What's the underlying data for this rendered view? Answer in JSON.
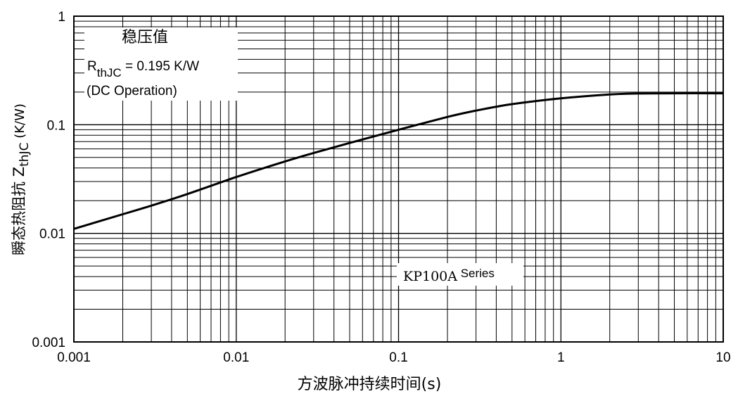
{
  "chart_data": {
    "type": "line",
    "x_scale": "log",
    "y_scale": "log",
    "xlim": [
      0.001,
      10
    ],
    "ylim": [
      0.001,
      1
    ],
    "grid": true,
    "xlabel": "方波脉冲持续时间(s)",
    "ylabel": {
      "prefix": "瞬态热阻抗 Z",
      "sub": "thJC",
      "suffix": " (K/W)"
    },
    "x_ticks": [
      {
        "value": 0.001,
        "label": "0.001"
      },
      {
        "value": 0.01,
        "label": "0.01"
      },
      {
        "value": 0.1,
        "label": "0.1"
      },
      {
        "value": 1,
        "label": "1"
      },
      {
        "value": 10,
        "label": "10"
      }
    ],
    "y_ticks": [
      {
        "value": 0.001,
        "label": "0.001"
      },
      {
        "value": 0.01,
        "label": "0.01"
      },
      {
        "value": 0.1,
        "label": "0.1"
      },
      {
        "value": 1,
        "label": "1"
      }
    ],
    "series": [
      {
        "name": "KP100A Series",
        "x": [
          0.001,
          0.002,
          0.003,
          0.005,
          0.01,
          0.02,
          0.03,
          0.05,
          0.1,
          0.2,
          0.3,
          0.5,
          1,
          2,
          3,
          5,
          10
        ],
        "y": [
          0.011,
          0.015,
          0.018,
          0.023,
          0.033,
          0.046,
          0.055,
          0.068,
          0.09,
          0.118,
          0.135,
          0.155,
          0.175,
          0.19,
          0.194,
          0.195,
          0.195
        ]
      }
    ],
    "annotations": {
      "box_title": "稳压值",
      "rth_symbol": "R",
      "rth_sub": "thJC",
      "rth_value": " = 0.195 K/W",
      "dc_note": "(DC Operation)",
      "series_label_main": "KP100A",
      "series_label_tail": " Series"
    }
  }
}
